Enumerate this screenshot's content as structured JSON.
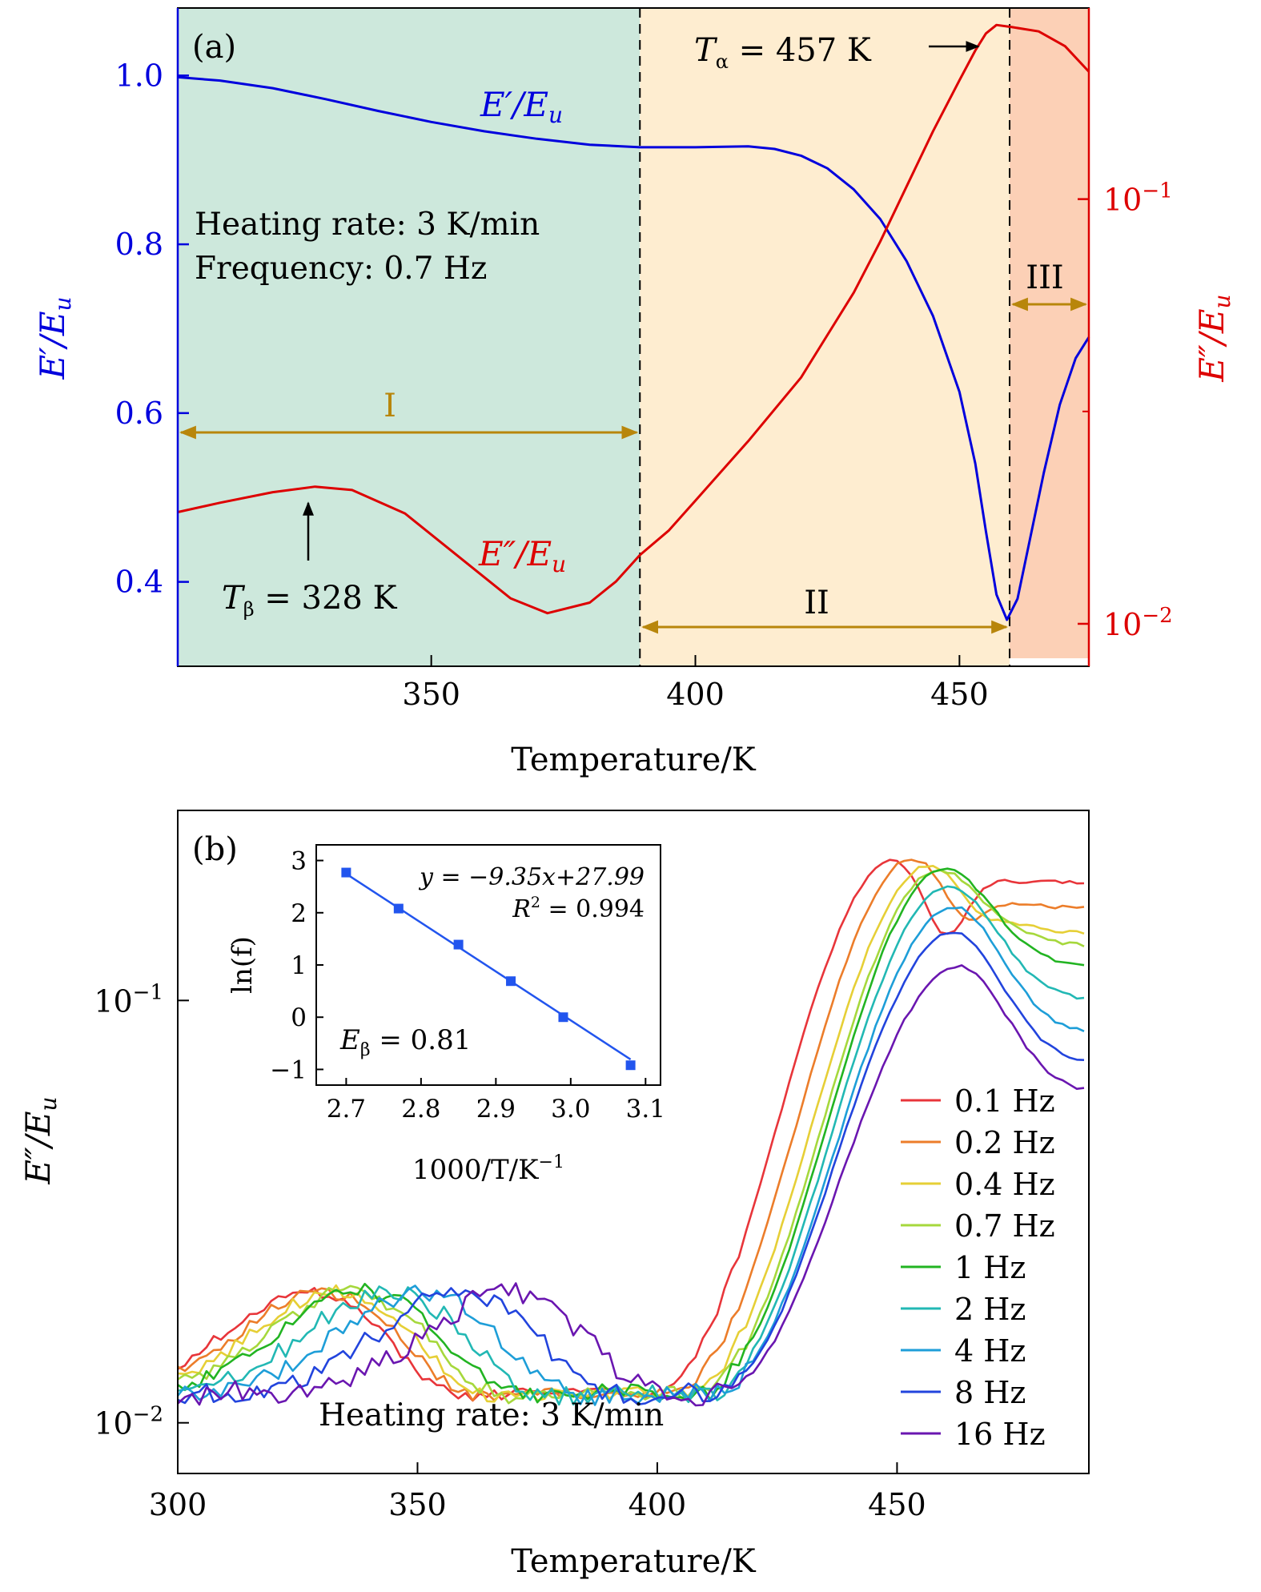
{
  "chart_data": [
    {
      "id": "a",
      "type": "line",
      "panel_label": "(a)",
      "xlabel": "Temperature/K",
      "ylabel_left": "E′/E",
      "ylabel_left_sub": "u",
      "ylabel_right": "E″/E",
      "ylabel_right_sub": "u",
      "xlim": [
        302,
        474.5
      ],
      "xticks": [
        350,
        400,
        450
      ],
      "ylim_left": [
        0.3,
        1.08
      ],
      "yticks_left": [
        0.4,
        0.6,
        0.8,
        1.0
      ],
      "ylim_right_log10": [
        -2.1,
        -0.55
      ],
      "yticks_right": [
        {
          "exp": -2,
          "base": "10",
          "sup": "−2"
        },
        {
          "exp": -1,
          "base": "10",
          "sup": "−1"
        }
      ],
      "left_axis_color": "#0000dd",
      "right_axis_color": "#dd0000",
      "regions": [
        {
          "label": "I",
          "from": 302,
          "to": 389.5,
          "color": "#cde8dc"
        },
        {
          "label": "II",
          "from": 389.5,
          "to": 459.5,
          "color": "#feedd0"
        },
        {
          "label": "III",
          "from": 459.5,
          "to": 474.5,
          "color": "#fcd0b6"
        }
      ],
      "dividers": [
        389.5,
        459.5
      ],
      "series": [
        {
          "name": "E′/E",
          "name_sub": "u",
          "axis": "left",
          "color": "#0000dd",
          "x": [
            302,
            310,
            320,
            330,
            340,
            350,
            360,
            370,
            380,
            389.5,
            400,
            410,
            415,
            420,
            425,
            430,
            435,
            440,
            445,
            450,
            453,
            455,
            457,
            459,
            461,
            463,
            466,
            469,
            472,
            474.5
          ],
          "y": [
            0.998,
            0.994,
            0.985,
            0.972,
            0.958,
            0.945,
            0.934,
            0.925,
            0.918,
            0.915,
            0.915,
            0.916,
            0.913,
            0.905,
            0.89,
            0.865,
            0.83,
            0.78,
            0.715,
            0.625,
            0.54,
            0.46,
            0.385,
            0.355,
            0.38,
            0.44,
            0.53,
            0.61,
            0.665,
            0.69
          ]
        },
        {
          "name": "E″/E",
          "name_sub": "u",
          "axis": "right",
          "color": "#dd0000",
          "x": [
            302,
            310,
            320,
            328,
            335,
            345,
            355,
            365,
            372,
            380,
            385,
            389.5,
            395,
            400,
            410,
            420,
            430,
            435,
            440,
            445,
            450,
            453,
            455,
            457,
            460,
            465,
            470,
            474.5
          ],
          "logy": [
            -1.737,
            -1.715,
            -1.69,
            -1.677,
            -1.685,
            -1.74,
            -1.84,
            -1.94,
            -1.975,
            -1.95,
            -1.9,
            -1.838,
            -1.78,
            -1.71,
            -1.57,
            -1.42,
            -1.22,
            -1.1,
            -0.97,
            -0.84,
            -0.72,
            -0.65,
            -0.61,
            -0.59,
            -0.595,
            -0.605,
            -0.64,
            -0.7
          ]
        }
      ],
      "annotations": {
        "heating_rate": "Heating rate: 3 K/min",
        "frequency": "Frequency: 0.7 Hz",
        "t_alpha_sym": "T",
        "t_alpha_sub": "α",
        "t_alpha_val": " = 457 K",
        "t_beta_sym": "T",
        "t_beta_sub": "β",
        "t_beta_val": " = 328 K",
        "region_I": "I",
        "region_II": "II",
        "region_III": "III"
      },
      "annotation_color": "#b8860b"
    },
    {
      "id": "b",
      "type": "line",
      "panel_label": "(b)",
      "xlabel": "Temperature/K",
      "ylabel": "E″/E",
      "ylabel_sub": "u",
      "xlim": [
        300,
        490
      ],
      "xticks": [
        300,
        350,
        400,
        450
      ],
      "ylim_log10": [
        -2.12,
        -0.55
      ],
      "yticks": [
        {
          "exp": -2,
          "base": "10",
          "sup": "−2"
        },
        {
          "exp": -1,
          "base": "10",
          "sup": "−1"
        }
      ],
      "heating_rate": "Heating rate: 3 K/min",
      "series": [
        {
          "name": "0.1 Hz",
          "color": "#e8353a",
          "Tb": 327,
          "Ta": 450,
          "dip": 0.1
        },
        {
          "name": "0.2 Hz",
          "color": "#ec7d2a",
          "Tb": 330,
          "Ta": 454,
          "dip": 0.06
        },
        {
          "name": "0.4 Hz",
          "color": "#e6cf36",
          "Tb": 333,
          "Ta": 457,
          "dip": 0.03
        },
        {
          "name": "0.7 Hz",
          "color": "#a6d83c",
          "Tb": 336,
          "Ta": 459,
          "dip": 0.01
        },
        {
          "name": "1 Hz",
          "color": "#22b422",
          "Tb": 339,
          "Ta": 460,
          "dip": 0.0
        },
        {
          "name": "2 Hz",
          "color": "#22b8b4",
          "Tb": 344,
          "Ta": 461,
          "dip": 0.0
        },
        {
          "name": "4 Hz",
          "color": "#1e9ed8",
          "Tb": 351,
          "Ta": 462,
          "dip": 0.0
        },
        {
          "name": "8 Hz",
          "color": "#2244dd",
          "Tb": 359,
          "Ta": 462,
          "dip": 0.0
        },
        {
          "name": "16 Hz",
          "color": "#6a16b0",
          "Tb": 369,
          "Ta": 463,
          "dip": 0.0
        }
      ],
      "series_peak_log10": [
        -0.66,
        -0.66,
        -0.68,
        -0.69,
        -0.69,
        -0.73,
        -0.78,
        -0.84,
        -0.92
      ],
      "series_tail_log10": [
        -0.72,
        -0.78,
        -0.84,
        -0.87,
        -0.92,
        -1.0,
        -1.08,
        -1.15,
        -1.22
      ]
    },
    {
      "id": "b-inset",
      "type": "scatter",
      "xlabel": "1000/T/K",
      "xlabel_sup": "−1",
      "ylabel": "ln(f)",
      "xlim": [
        2.66,
        3.12
      ],
      "ylim": [
        -1.3,
        3.3
      ],
      "xticks": [
        2.7,
        2.8,
        2.9,
        3.0,
        3.1
      ],
      "yticks": [
        -1,
        0,
        1,
        2,
        3
      ],
      "x": [
        2.7,
        2.77,
        2.85,
        2.92,
        2.99,
        3.08
      ],
      "y": [
        2.77,
        2.08,
        1.39,
        0.69,
        0.0,
        -0.92
      ],
      "fit": {
        "slope": -9.35,
        "intercept": 27.99,
        "x_range": [
          2.7,
          3.08
        ]
      },
      "color": "#2255ee",
      "equation": "y = −9.35x+27.99",
      "r2_label": "R",
      "r2_sup": "2",
      "r2_value": " =  0.994",
      "e_beta_sym": "E",
      "e_beta_sub": "β",
      "e_beta_value": " = 0.81"
    }
  ]
}
